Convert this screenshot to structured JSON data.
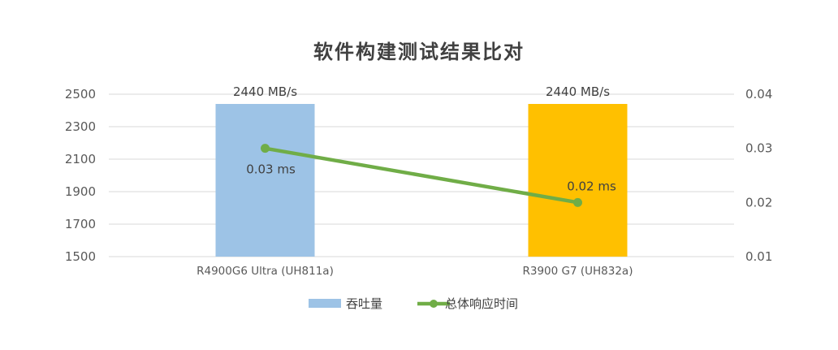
{
  "chart_data": {
    "type": "bar",
    "title": "软件构建测试结果比对",
    "categories": [
      "R4900G6 Ultra (UH811a)",
      "R3900 G7 (UH832a)"
    ],
    "y_left": {
      "min": 1500,
      "max": 2500,
      "ticks": [
        1500,
        1700,
        1900,
        2100,
        2300,
        2500
      ]
    },
    "y_right": {
      "min": 0.01,
      "max": 0.04,
      "ticks": [
        "0.01",
        "0.02",
        "0.03",
        "0.04"
      ]
    },
    "grid": true,
    "legend_position": "bottom",
    "series": [
      {
        "name": "吞吐量",
        "type": "bar",
        "axis": "left",
        "values": [
          2440,
          2440
        ],
        "labels": [
          "2440 MB/s",
          "2440 MB/s"
        ],
        "colors": [
          "#9DC3E6",
          "#FFC000"
        ]
      },
      {
        "name": "总体响应时间",
        "type": "line",
        "axis": "right",
        "values": [
          0.03,
          0.02
        ],
        "labels": [
          "0.03 ms",
          "0.02 ms"
        ],
        "color": "#70AD47"
      }
    ]
  }
}
